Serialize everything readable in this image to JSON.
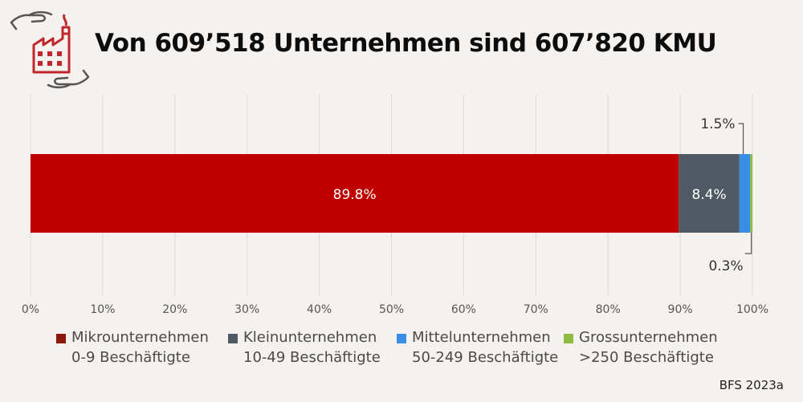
{
  "title": "Von 609’518 Unternehmen sind 607’820 KMU",
  "source": "BFS 2023a",
  "colors": {
    "background": "#f4f1ee",
    "mikro": "#c00000",
    "klein": "#4e5963",
    "mittel": "#3a8ee6",
    "gross": "#8fbc3f",
    "logo": "#c0262c"
  },
  "legend": [
    {
      "line1": "Mikrounternehmen",
      "line2": "0-9 Beschäftigte",
      "color": "#8b1a0a"
    },
    {
      "line1": "Kleinunternehmen",
      "line2": "10-49 Beschäftigte",
      "color": "#4e5963"
    },
    {
      "line1": "Mittelunternehmen",
      "line2": "50-249 Beschäftigte",
      "color": "#3a8ee6"
    },
    {
      "line1": "Grossunternehmen",
      "line2": ">250 Beschäftigte",
      "color": "#8fbc3f"
    }
  ],
  "chart_data": {
    "type": "bar",
    "orientation": "horizontal-stacked",
    "xlim": [
      0,
      100
    ],
    "x_ticks": [
      "0%",
      "10%",
      "20%",
      "30%",
      "40%",
      "50%",
      "60%",
      "70%",
      "80%",
      "90%",
      "100%"
    ],
    "grid": true,
    "legend_position": "bottom",
    "series": [
      {
        "name": "Mikrounternehmen 0-9 Beschäftigte",
        "value": 89.8,
        "label": "89.8%",
        "color": "#c00000"
      },
      {
        "name": "Kleinunternehmen 10-49 Beschäftigte",
        "value": 8.4,
        "label": "8.4%",
        "color": "#4e5963"
      },
      {
        "name": "Mittelunternehmen 50-249 Beschäftigte",
        "value": 1.5,
        "label": "1.5%",
        "color": "#3a8ee6"
      },
      {
        "name": "Grossunternehmen >250 Beschäftigte",
        "value": 0.3,
        "label": "0.3%",
        "color": "#8fbc3f"
      }
    ]
  }
}
